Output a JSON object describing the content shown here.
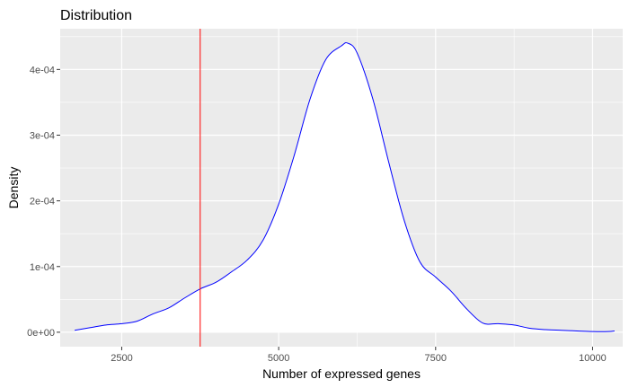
{
  "chart_data": {
    "type": "line",
    "title": "Distribution",
    "xlabel": "Number of expressed genes",
    "ylabel": "Density",
    "xlim": [
      1520,
      10480
    ],
    "ylim": [
      -2.2e-05,
      0.000462
    ],
    "x_ticks": [
      {
        "value": 2500,
        "label": "2500"
      },
      {
        "value": 5000,
        "label": "5000"
      },
      {
        "value": 7500,
        "label": "7500"
      },
      {
        "value": 10000,
        "label": "10000"
      }
    ],
    "y_ticks": [
      {
        "value": 0,
        "label": "0e+00"
      },
      {
        "value": 0.0001,
        "label": "1e-04"
      },
      {
        "value": 0.0002,
        "label": "2e-04"
      },
      {
        "value": 0.0003,
        "label": "3e-04"
      },
      {
        "value": 0.0004,
        "label": "4e-04"
      }
    ],
    "grid": true,
    "vline": {
      "x": 3750,
      "color": "#ff0000"
    },
    "series": [
      {
        "color": "#0000ff",
        "x": [
          1750,
          2000,
          2250,
          2500,
          2750,
          3000,
          3250,
          3500,
          3750,
          4000,
          4250,
          4500,
          4750,
          5000,
          5250,
          5500,
          5750,
          6000,
          6100,
          6250,
          6500,
          6750,
          7000,
          7250,
          7500,
          7750,
          8000,
          8250,
          8500,
          8750,
          9000,
          9250,
          9500,
          9750,
          10000,
          10250,
          10350
        ],
        "y": [
          3e-06,
          7e-06,
          1.1e-05,
          1.3e-05,
          1.7e-05,
          2.8e-05,
          3.7e-05,
          5.2e-05,
          6.6e-05,
          7.6e-05,
          9.2e-05,
          0.00011,
          0.00014,
          0.000195,
          0.00027,
          0.000355,
          0.000415,
          0.000436,
          0.00044,
          0.000425,
          0.000355,
          0.00026,
          0.00017,
          0.000107,
          8.4e-05,
          6.2e-05,
          3.5e-05,
          1.4e-05,
          1.3e-05,
          1.1e-05,
          6e-06,
          4e-06,
          3e-06,
          2e-06,
          1e-06,
          1e-06,
          2e-06
        ]
      }
    ]
  }
}
